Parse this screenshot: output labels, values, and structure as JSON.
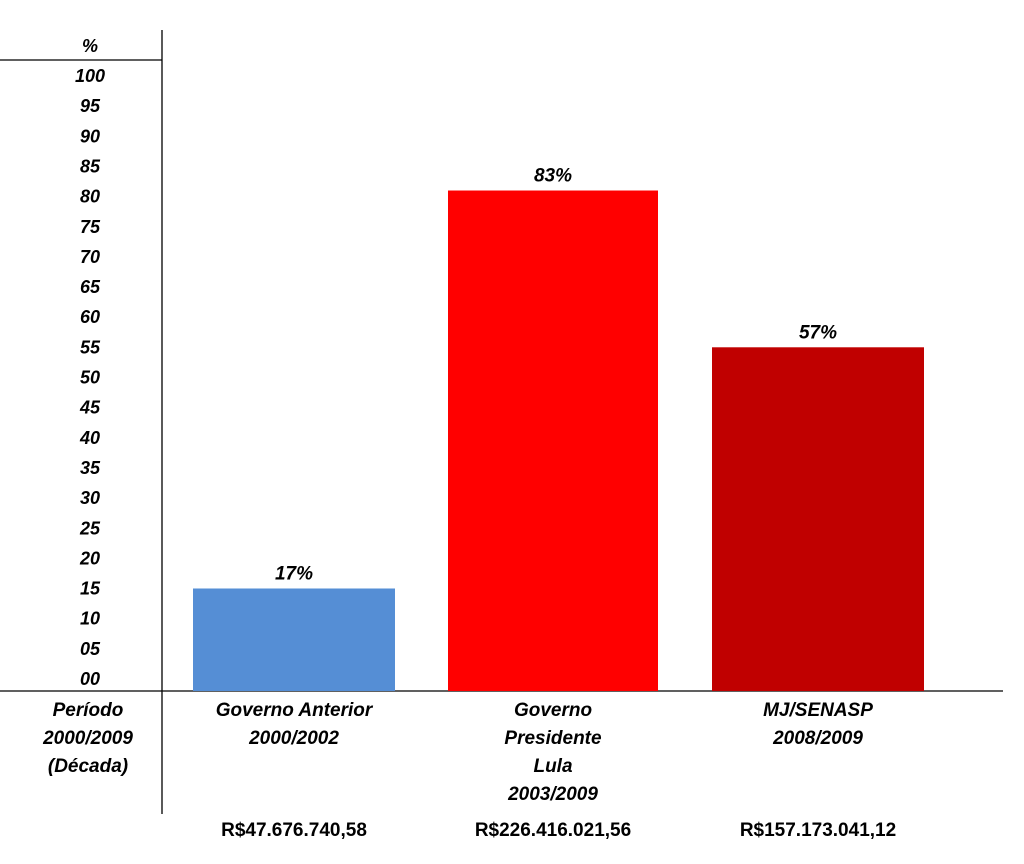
{
  "chart_data": {
    "type": "bar",
    "y_unit": "%",
    "y_ticks": [
      "00",
      "05",
      "10",
      "15",
      "20",
      "25",
      "30",
      "35",
      "40",
      "45",
      "50",
      "55",
      "60",
      "65",
      "70",
      "75",
      "80",
      "85",
      "90",
      "95",
      "100"
    ],
    "ylim": [
      0,
      100
    ],
    "grid": false,
    "period_label": [
      "Período",
      "2000/2009",
      "(Década)"
    ],
    "categories": [
      {
        "lines": [
          "Governo Anterior",
          "2000/2002"
        ],
        "value": 17,
        "value_label": "17%",
        "amount": "R$47.676.740,58",
        "color": "#558ed5"
      },
      {
        "lines": [
          "Governo",
          "Presidente",
          "Lula",
          "2003/2009"
        ],
        "value": 83,
        "value_label": "83%",
        "amount": "R$226.416.021,56",
        "color": "#ff0000"
      },
      {
        "lines": [
          "MJ/SENASP",
          "2008/2009"
        ],
        "value": 57,
        "value_label": "57%",
        "amount": "R$157.173.041,12",
        "color": "#c00000"
      }
    ]
  }
}
